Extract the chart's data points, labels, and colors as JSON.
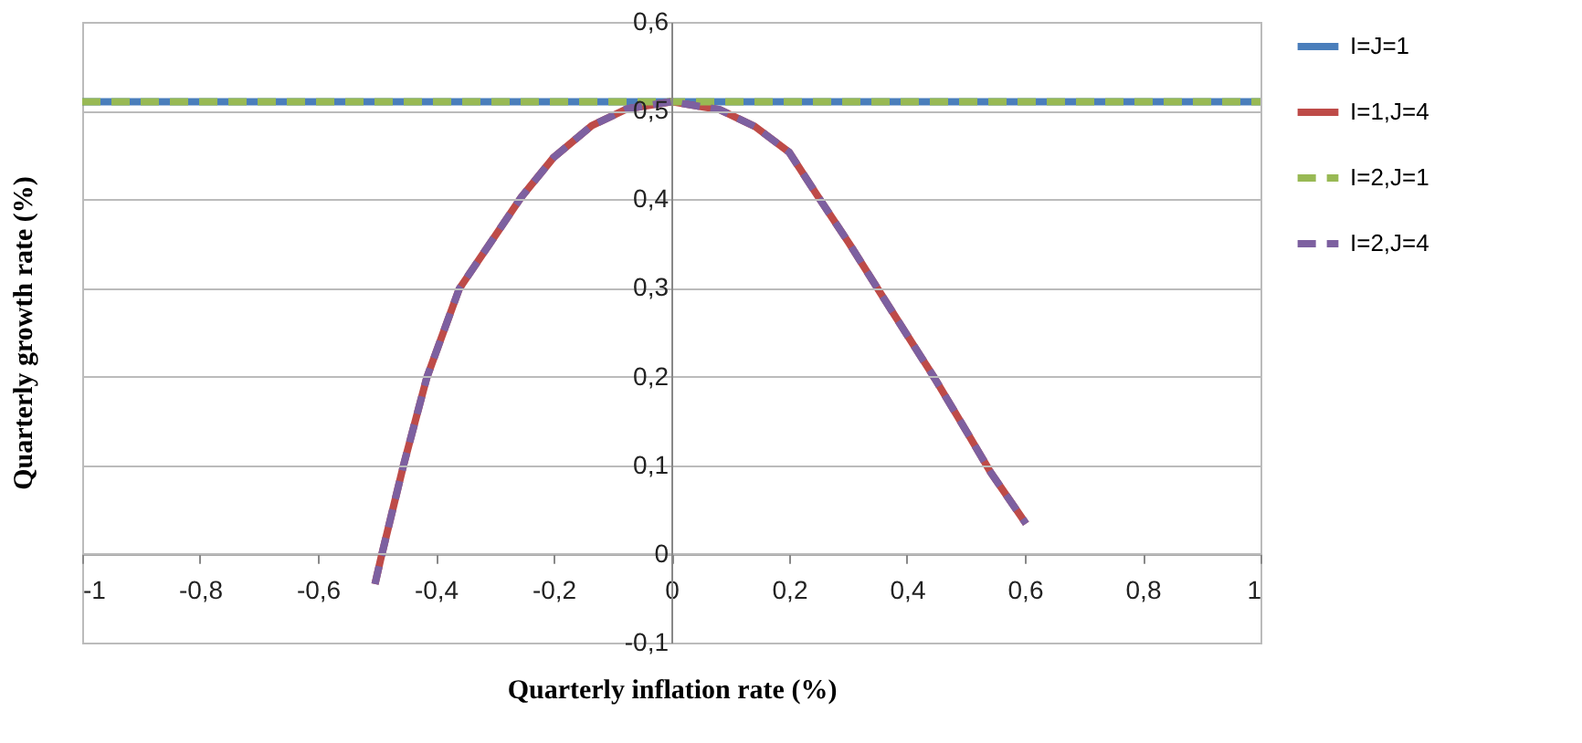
{
  "chart_data": {
    "type": "line",
    "xlabel": "Quarterly inflation rate (%)",
    "ylabel": "Quarterly growth rate (%)",
    "xlim": [
      -1,
      1
    ],
    "ylim": [
      -0.1,
      0.6
    ],
    "xticks": [
      {
        "value": -1,
        "label": "-1"
      },
      {
        "value": -0.8,
        "label": "-0,8"
      },
      {
        "value": -0.6,
        "label": "-0,6"
      },
      {
        "value": -0.4,
        "label": "-0,4"
      },
      {
        "value": -0.2,
        "label": "-0,2"
      },
      {
        "value": 0,
        "label": "0"
      },
      {
        "value": 0.2,
        "label": "0,2"
      },
      {
        "value": 0.4,
        "label": "0,4"
      },
      {
        "value": 0.6,
        "label": "0,6"
      },
      {
        "value": 0.8,
        "label": "0,8"
      },
      {
        "value": 1,
        "label": "1"
      }
    ],
    "yticks": [
      {
        "value": -0.1,
        "label": "-0,1"
      },
      {
        "value": 0,
        "label": "0"
      },
      {
        "value": 0.1,
        "label": "0,1"
      },
      {
        "value": 0.2,
        "label": "0,2"
      },
      {
        "value": 0.3,
        "label": "0,3"
      },
      {
        "value": 0.4,
        "label": "0,4"
      },
      {
        "value": 0.5,
        "label": "0,5"
      },
      {
        "value": 0.6,
        "label": "0,6"
      }
    ],
    "grid": "y",
    "legend": "right",
    "series": [
      {
        "name": "I=J=1",
        "color": "#4a7ebb",
        "line_style": "solid",
        "x": [
          -1,
          1
        ],
        "values": [
          0.51,
          0.51
        ]
      },
      {
        "name": "I=1,J=4",
        "color": "#be4b48",
        "line_style": "solid",
        "x": [
          -0.503,
          -0.493,
          -0.455,
          -0.415,
          -0.36,
          -0.255,
          -0.2,
          -0.135,
          -0.075,
          0,
          0.082,
          0.142,
          0.2,
          0.247,
          0.302,
          0.357,
          0.4,
          0.447,
          0.502,
          0.542,
          0.602
        ],
        "values": [
          -0.034,
          -0.005,
          0.099,
          0.199,
          0.299,
          0.402,
          0.447,
          0.483,
          0.502,
          0.51,
          0.501,
          0.482,
          0.453,
          0.405,
          0.35,
          0.292,
          0.247,
          0.198,
          0.137,
          0.092,
          0.034
        ]
      },
      {
        "name": "I=2,J=1",
        "color": "#98b954",
        "line_style": "dashed",
        "x": [
          -1,
          1
        ],
        "values": [
          0.51,
          0.51
        ]
      },
      {
        "name": "I=2,J=4",
        "color": "#7d60a0",
        "line_style": "dashed",
        "x": [
          -0.503,
          -0.493,
          -0.455,
          -0.415,
          -0.36,
          -0.255,
          -0.2,
          -0.135,
          -0.075,
          0,
          0.082,
          0.142,
          0.2,
          0.247,
          0.302,
          0.357,
          0.4,
          0.447,
          0.502,
          0.542,
          0.602
        ],
        "values": [
          -0.034,
          -0.005,
          0.099,
          0.199,
          0.299,
          0.402,
          0.447,
          0.483,
          0.502,
          0.51,
          0.501,
          0.482,
          0.453,
          0.405,
          0.35,
          0.292,
          0.247,
          0.198,
          0.137,
          0.092,
          0.034
        ]
      }
    ]
  }
}
